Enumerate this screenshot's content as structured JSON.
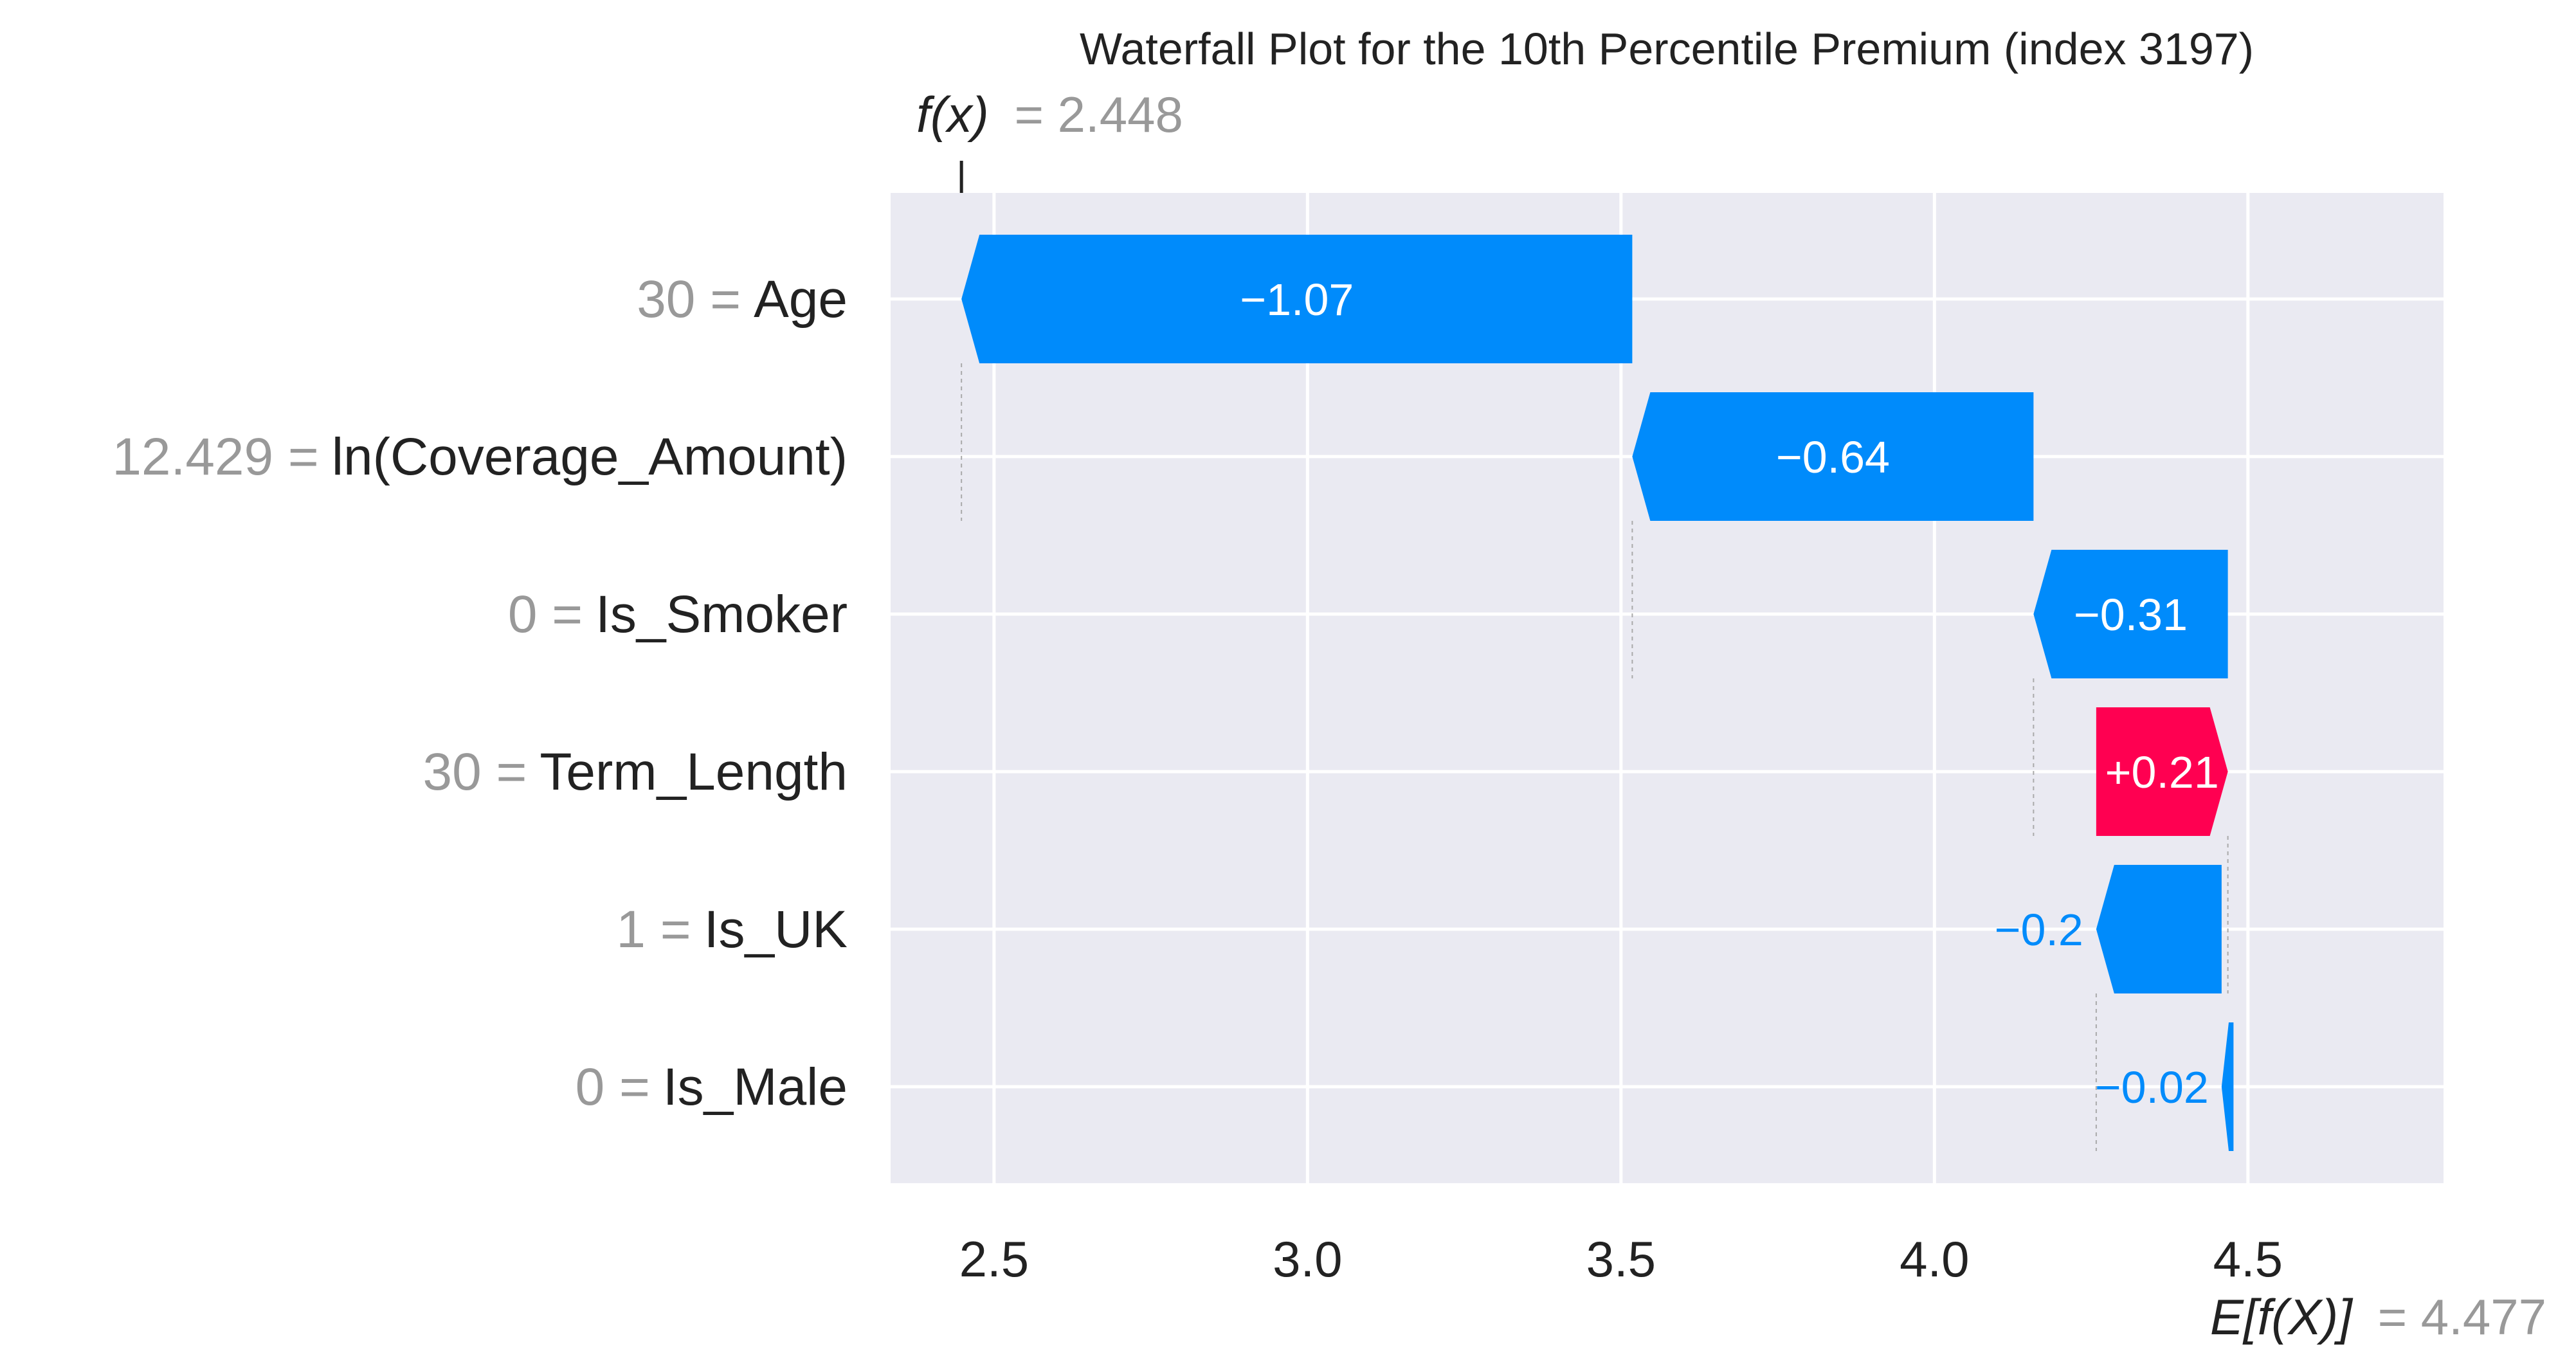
{
  "chart_data": {
    "type": "waterfall",
    "title": "Waterfall Plot for the 10th Percentile Premium (index 3197)",
    "fx_label": "f(x)",
    "fx_value_text": "= 2.448",
    "fx_value": 2.448,
    "ex_label": "E[f(X)]",
    "ex_value_text": "= 4.477",
    "ex_value": 4.477,
    "xlim": [
      2.335,
      4.812
    ],
    "xticks": [
      2.5,
      3.0,
      3.5,
      4.0,
      4.5
    ],
    "xtick_labels": [
      "2.5",
      "3.0",
      "3.5",
      "4.0",
      "4.5"
    ],
    "grid": true,
    "colors": {
      "negative": "#008bfb",
      "positive": "#ff0051",
      "panel": "#eaeaf2",
      "feature_value": "#999999",
      "feature_name": "#222222"
    },
    "features": [
      {
        "value_text": "30 =",
        "name": "Age",
        "start": 3.518,
        "end": 2.448,
        "label": "−1.07",
        "sign": "neg"
      },
      {
        "value_text": "12.429 =",
        "name": "ln(Coverage_Amount)",
        "start": 4.158,
        "end": 3.518,
        "label": "−0.64",
        "sign": "neg"
      },
      {
        "value_text": "0 =",
        "name": "Is_Smoker",
        "start": 4.468,
        "end": 4.158,
        "label": "−0.31",
        "sign": "neg"
      },
      {
        "value_text": "30 =",
        "name": "Term_Length",
        "start": 4.258,
        "end": 4.468,
        "label": "+0.21",
        "sign": "pos"
      },
      {
        "value_text": "1 =",
        "name": "Is_UK",
        "start": 4.458,
        "end": 4.258,
        "label": "−0.2",
        "sign": "neg"
      },
      {
        "value_text": "0 =",
        "name": "Is_Male",
        "start": 4.477,
        "end": 4.458,
        "label": "−0.02",
        "sign": "neg"
      }
    ]
  }
}
